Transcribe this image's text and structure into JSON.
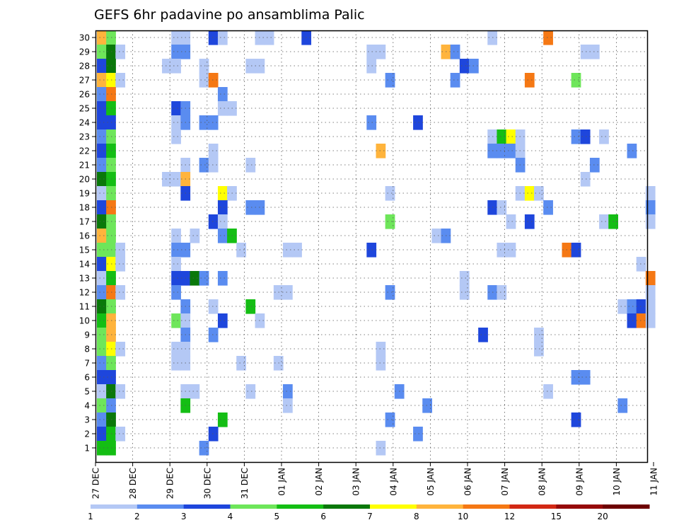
{
  "chart_data": {
    "type": "heatmap",
    "title": "GEFS 6hr padavine po ansamblima Palic",
    "xlabel": "",
    "ylabel": "",
    "x_ticks": [
      "27 DEC",
      "28 DEC",
      "29 DEC",
      "30 DEC",
      "31 DEC",
      "01 JAN",
      "02 JAN",
      "03 JAN",
      "04 JAN",
      "05 JAN",
      "06 JAN",
      "07 JAN",
      "08 JAN",
      "09 JAN",
      "10 JAN",
      "11 JAN"
    ],
    "y_ticks": [
      "1",
      "2",
      "3",
      "4",
      "5",
      "6",
      "7",
      "8",
      "9",
      "10",
      "11",
      "12",
      "13",
      "14",
      "15",
      "16",
      "17",
      "18",
      "19",
      "20",
      "21",
      "22",
      "23",
      "24",
      "25",
      "26",
      "27",
      "28",
      "29",
      "30"
    ],
    "ylim": [
      0,
      30
    ],
    "steps_per_day": 4,
    "x_steps_total": 60,
    "grid": true,
    "colorbar": {
      "labels": [
        "1",
        "2",
        "3",
        "4",
        "5",
        "6",
        "7",
        "8",
        "10",
        "12",
        "15",
        "20"
      ],
      "colors": [
        "#b4c8f5",
        "#5a8cf0",
        "#1e46dc",
        "#6ee65a",
        "#14be14",
        "#0a780a",
        "#ffff00",
        "#ffb43c",
        "#f57814",
        "#d22814",
        "#960a0a",
        "#6e0000"
      ]
    },
    "cells": [
      [
        0,
        30,
        8
      ],
      [
        1,
        30,
        4
      ],
      [
        8,
        30,
        1
      ],
      [
        9,
        30,
        1
      ],
      [
        12,
        30,
        3
      ],
      [
        13,
        30,
        1
      ],
      [
        17,
        30,
        1
      ],
      [
        18,
        30,
        1
      ],
      [
        22,
        30,
        3
      ],
      [
        42,
        30,
        1
      ],
      [
        48,
        30,
        9
      ],
      [
        0,
        29,
        4
      ],
      [
        1,
        29,
        6
      ],
      [
        2,
        29,
        1
      ],
      [
        8,
        29,
        2
      ],
      [
        9,
        29,
        2
      ],
      [
        29,
        29,
        1
      ],
      [
        30,
        29,
        1
      ],
      [
        37,
        29,
        8
      ],
      [
        38,
        29,
        2
      ],
      [
        52,
        29,
        1
      ],
      [
        53,
        29,
        1
      ],
      [
        0,
        28,
        3
      ],
      [
        1,
        28,
        6
      ],
      [
        7,
        28,
        1
      ],
      [
        8,
        28,
        1
      ],
      [
        11,
        28,
        1
      ],
      [
        16,
        28,
        1
      ],
      [
        17,
        28,
        1
      ],
      [
        29,
        28,
        1
      ],
      [
        39,
        28,
        3
      ],
      [
        40,
        28,
        2
      ],
      [
        0,
        27,
        8
      ],
      [
        1,
        27,
        7
      ],
      [
        2,
        27,
        1
      ],
      [
        11,
        27,
        1
      ],
      [
        12,
        27,
        9
      ],
      [
        31,
        27,
        2
      ],
      [
        38,
        27,
        2
      ],
      [
        46,
        27,
        9
      ],
      [
        51,
        27,
        4
      ],
      [
        0,
        26,
        2
      ],
      [
        1,
        26,
        9
      ],
      [
        13,
        26,
        2
      ],
      [
        0,
        25,
        3
      ],
      [
        1,
        25,
        5
      ],
      [
        8,
        25,
        3
      ],
      [
        9,
        25,
        2
      ],
      [
        13,
        25,
        1
      ],
      [
        14,
        25,
        1
      ],
      [
        0,
        24,
        3
      ],
      [
        1,
        24,
        3
      ],
      [
        8,
        24,
        1
      ],
      [
        9,
        24,
        2
      ],
      [
        11,
        24,
        2
      ],
      [
        12,
        24,
        2
      ],
      [
        29,
        24,
        2
      ],
      [
        34,
        24,
        3
      ],
      [
        0,
        23,
        2
      ],
      [
        1,
        23,
        4
      ],
      [
        8,
        23,
        1
      ],
      [
        42,
        23,
        1
      ],
      [
        43,
        23,
        5
      ],
      [
        44,
        23,
        7
      ],
      [
        45,
        23,
        1
      ],
      [
        51,
        23,
        2
      ],
      [
        52,
        23,
        3
      ],
      [
        54,
        23,
        1
      ],
      [
        0,
        22,
        3
      ],
      [
        1,
        22,
        5
      ],
      [
        12,
        22,
        1
      ],
      [
        30,
        22,
        8
      ],
      [
        42,
        22,
        2
      ],
      [
        43,
        22,
        2
      ],
      [
        44,
        22,
        2
      ],
      [
        45,
        22,
        1
      ],
      [
        57,
        22,
        2
      ],
      [
        0,
        21,
        2
      ],
      [
        1,
        21,
        4
      ],
      [
        9,
        21,
        1
      ],
      [
        11,
        21,
        2
      ],
      [
        12,
        21,
        1
      ],
      [
        16,
        21,
        1
      ],
      [
        45,
        21,
        2
      ],
      [
        53,
        21,
        2
      ],
      [
        0,
        20,
        6
      ],
      [
        1,
        20,
        5
      ],
      [
        7,
        20,
        1
      ],
      [
        8,
        20,
        1
      ],
      [
        9,
        20,
        8
      ],
      [
        52,
        20,
        1
      ],
      [
        0,
        19,
        1
      ],
      [
        1,
        19,
        4
      ],
      [
        9,
        19,
        3
      ],
      [
        13,
        19,
        7
      ],
      [
        14,
        19,
        1
      ],
      [
        31,
        19,
        1
      ],
      [
        45,
        19,
        1
      ],
      [
        46,
        19,
        7
      ],
      [
        47,
        19,
        1
      ],
      [
        59,
        19,
        1
      ],
      [
        0,
        18,
        3
      ],
      [
        1,
        18,
        9
      ],
      [
        13,
        18,
        3
      ],
      [
        16,
        18,
        2
      ],
      [
        17,
        18,
        2
      ],
      [
        42,
        18,
        3
      ],
      [
        43,
        18,
        1
      ],
      [
        48,
        18,
        2
      ],
      [
        59,
        18,
        2
      ],
      [
        0,
        17,
        6
      ],
      [
        1,
        17,
        4
      ],
      [
        12,
        17,
        3
      ],
      [
        13,
        17,
        1
      ],
      [
        31,
        17,
        4
      ],
      [
        44,
        17,
        1
      ],
      [
        46,
        17,
        3
      ],
      [
        54,
        17,
        1
      ],
      [
        55,
        17,
        5
      ],
      [
        59,
        17,
        1
      ],
      [
        0,
        16,
        8
      ],
      [
        1,
        16,
        4
      ],
      [
        8,
        16,
        1
      ],
      [
        10,
        16,
        1
      ],
      [
        13,
        16,
        2
      ],
      [
        14,
        16,
        5
      ],
      [
        36,
        16,
        1
      ],
      [
        37,
        16,
        2
      ],
      [
        0,
        15,
        4
      ],
      [
        1,
        15,
        4
      ],
      [
        2,
        15,
        1
      ],
      [
        8,
        15,
        2
      ],
      [
        9,
        15,
        2
      ],
      [
        15,
        15,
        1
      ],
      [
        20,
        15,
        1
      ],
      [
        21,
        15,
        1
      ],
      [
        29,
        15,
        3
      ],
      [
        43,
        15,
        1
      ],
      [
        44,
        15,
        1
      ],
      [
        50,
        15,
        9
      ],
      [
        51,
        15,
        3
      ],
      [
        0,
        14,
        3
      ],
      [
        1,
        14,
        7
      ],
      [
        2,
        14,
        1
      ],
      [
        8,
        14,
        1
      ],
      [
        58,
        14,
        1
      ],
      [
        0,
        13,
        1
      ],
      [
        1,
        13,
        5
      ],
      [
        8,
        13,
        3
      ],
      [
        9,
        13,
        3
      ],
      [
        10,
        13,
        6
      ],
      [
        11,
        13,
        2
      ],
      [
        13,
        13,
        2
      ],
      [
        39,
        13,
        1
      ],
      [
        59,
        13,
        9
      ],
      [
        0,
        12,
        2
      ],
      [
        1,
        12,
        9
      ],
      [
        2,
        12,
        1
      ],
      [
        8,
        12,
        2
      ],
      [
        19,
        12,
        1
      ],
      [
        20,
        12,
        1
      ],
      [
        31,
        12,
        2
      ],
      [
        39,
        12,
        1
      ],
      [
        42,
        12,
        2
      ],
      [
        43,
        12,
        1
      ],
      [
        59,
        12,
        1
      ],
      [
        0,
        11,
        6
      ],
      [
        1,
        11,
        4
      ],
      [
        9,
        11,
        2
      ],
      [
        12,
        11,
        1
      ],
      [
        16,
        11,
        5
      ],
      [
        56,
        11,
        1
      ],
      [
        57,
        11,
        2
      ],
      [
        58,
        11,
        3
      ],
      [
        59,
        11,
        1
      ],
      [
        0,
        10,
        5
      ],
      [
        1,
        10,
        8
      ],
      [
        8,
        10,
        4
      ],
      [
        9,
        10,
        1
      ],
      [
        13,
        10,
        3
      ],
      [
        17,
        10,
        1
      ],
      [
        57,
        10,
        3
      ],
      [
        58,
        10,
        9
      ],
      [
        59,
        10,
        1
      ],
      [
        0,
        9,
        4
      ],
      [
        1,
        9,
        8
      ],
      [
        9,
        9,
        2
      ],
      [
        12,
        9,
        2
      ],
      [
        41,
        9,
        3
      ],
      [
        47,
        9,
        1
      ],
      [
        0,
        8,
        4
      ],
      [
        1,
        8,
        7
      ],
      [
        2,
        8,
        1
      ],
      [
        8,
        8,
        1
      ],
      [
        9,
        8,
        1
      ],
      [
        30,
        8,
        1
      ],
      [
        47,
        8,
        1
      ],
      [
        0,
        7,
        2
      ],
      [
        1,
        7,
        4
      ],
      [
        8,
        7,
        1
      ],
      [
        9,
        7,
        1
      ],
      [
        15,
        7,
        1
      ],
      [
        19,
        7,
        1
      ],
      [
        30,
        7,
        1
      ],
      [
        0,
        6,
        3
      ],
      [
        1,
        6,
        3
      ],
      [
        51,
        6,
        2
      ],
      [
        52,
        6,
        2
      ],
      [
        0,
        5,
        1
      ],
      [
        1,
        5,
        6
      ],
      [
        2,
        5,
        1
      ],
      [
        9,
        5,
        1
      ],
      [
        10,
        5,
        1
      ],
      [
        16,
        5,
        1
      ],
      [
        20,
        5,
        2
      ],
      [
        32,
        5,
        2
      ],
      [
        48,
        5,
        1
      ],
      [
        0,
        4,
        4
      ],
      [
        1,
        4,
        2
      ],
      [
        9,
        4,
        5
      ],
      [
        20,
        4,
        1
      ],
      [
        35,
        4,
        2
      ],
      [
        56,
        4,
        2
      ],
      [
        0,
        3,
        2
      ],
      [
        1,
        3,
        6
      ],
      [
        13,
        3,
        5
      ],
      [
        31,
        3,
        2
      ],
      [
        51,
        3,
        3
      ],
      [
        0,
        2,
        3
      ],
      [
        1,
        2,
        5
      ],
      [
        2,
        2,
        1
      ],
      [
        12,
        2,
        3
      ],
      [
        34,
        2,
        2
      ],
      [
        0,
        1,
        5
      ],
      [
        1,
        1,
        5
      ],
      [
        11,
        1,
        2
      ],
      [
        30,
        1,
        1
      ]
    ]
  }
}
